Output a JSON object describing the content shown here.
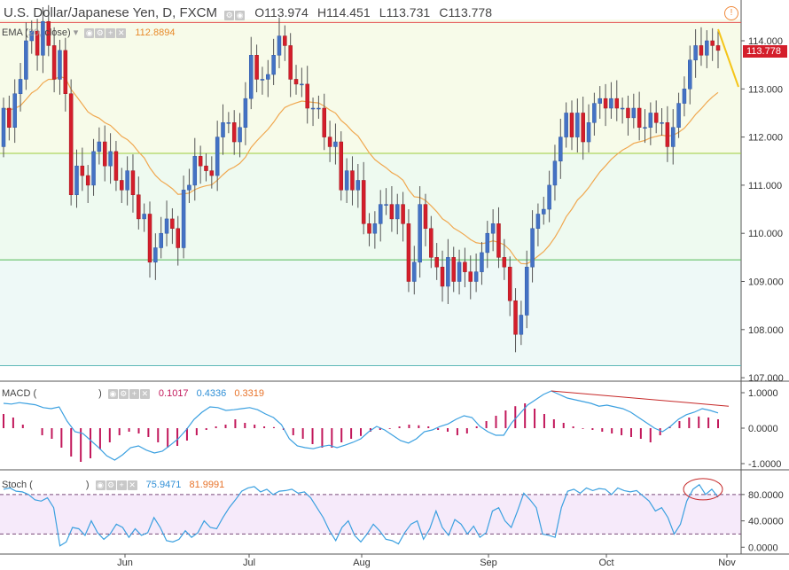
{
  "header": {
    "title": "U.S. Dollar/Japanese Yen, D, FXCM",
    "open": "O113.974",
    "high": "H114.451",
    "low": "L113.731",
    "close": "C113.778",
    "alert_icon": "alert-icon"
  },
  "indicators": {
    "ema": {
      "label": "EMA (",
      "params": "close)",
      "value": "112.8894"
    },
    "macd": {
      "label": "MACD (",
      "params": ")",
      "v1": "0.1017",
      "v2": "0.4336",
      "v3": "0.3319"
    },
    "stoch": {
      "label": "Stoch (",
      "params": ")",
      "v1": "75.9471",
      "v2": "81.9991"
    }
  },
  "last_price": "113.778",
  "colors": {
    "up": "#4472c4",
    "down": "#d41e2b",
    "ema": "#f0a850",
    "macd_line": "#3ba0e0",
    "macd_hist": "#c2185b",
    "stoch_k": "#3ba0e0",
    "accent_yellow": "#f5c518",
    "red_line": "#c62828"
  },
  "chart_data": [
    {
      "type": "candlestick",
      "title": "U.S. Dollar/Japanese Yen, D, FXCM",
      "xlabel": "",
      "ylabel": "",
      "x_ticks": [
        "Jun",
        "Jul",
        "Aug",
        "Sep",
        "Oct",
        "Nov"
      ],
      "y_ticks": [
        114.0,
        113.0,
        112.0,
        111.0,
        110.0,
        109.0,
        108.0,
        107.0
      ],
      "ylim": [
        107.0,
        114.4
      ],
      "horizontal_lines": [
        114.38,
        111.66,
        109.45,
        107.25
      ],
      "candles": [
        [
          111.8,
          112.6
        ],
        [
          112.6,
          112.2
        ],
        [
          112.2,
          112.9
        ],
        [
          112.9,
          113.2
        ],
        [
          113.2,
          114.0
        ],
        [
          114.0,
          114.2
        ],
        [
          114.2,
          113.7
        ],
        [
          113.7,
          114.4
        ],
        [
          114.4,
          113.9
        ],
        [
          113.9,
          113.2
        ],
        [
          113.2,
          113.8
        ],
        [
          113.8,
          112.9
        ],
        [
          112.9,
          110.8
        ],
        [
          110.8,
          111.4
        ],
        [
          111.4,
          111.2
        ],
        [
          111.2,
          111.0
        ],
        [
          111.0,
          111.7
        ],
        [
          111.7,
          111.9
        ],
        [
          111.9,
          111.4
        ],
        [
          111.4,
          111.7
        ],
        [
          111.7,
          111.1
        ],
        [
          111.1,
          110.9
        ],
        [
          110.9,
          111.3
        ],
        [
          111.3,
          110.8
        ],
        [
          110.8,
          110.3
        ],
        [
          110.3,
          110.4
        ],
        [
          110.4,
          109.4
        ],
        [
          109.4,
          109.7
        ],
        [
          109.7,
          110.0
        ],
        [
          110.0,
          110.3
        ],
        [
          110.3,
          110.1
        ],
        [
          110.1,
          109.7
        ],
        [
          109.7,
          110.9
        ],
        [
          110.9,
          111.0
        ],
        [
          111.0,
          111.6
        ],
        [
          111.6,
          111.4
        ],
        [
          111.4,
          111.3
        ],
        [
          111.3,
          111.2
        ],
        [
          111.2,
          112.0
        ],
        [
          112.0,
          112.3
        ],
        [
          112.3,
          112.3
        ],
        [
          112.3,
          111.9
        ],
        [
          111.9,
          112.2
        ],
        [
          112.2,
          112.8
        ],
        [
          112.8,
          113.7
        ],
        [
          113.7,
          113.2
        ],
        [
          113.2,
          113.2
        ],
        [
          113.2,
          113.3
        ],
        [
          113.3,
          113.7
        ],
        [
          113.7,
          114.1
        ],
        [
          114.1,
          113.9
        ],
        [
          113.9,
          113.2
        ],
        [
          113.2,
          113.1
        ],
        [
          113.1,
          113.1
        ],
        [
          113.1,
          112.6
        ],
        [
          112.6,
          112.6
        ],
        [
          112.6,
          112.6
        ],
        [
          112.6,
          112.0
        ],
        [
          112.0,
          111.8
        ],
        [
          111.8,
          111.9
        ],
        [
          111.9,
          110.9
        ],
        [
          110.9,
          111.3
        ],
        [
          111.3,
          110.9
        ],
        [
          110.9,
          111.1
        ],
        [
          111.1,
          110.2
        ],
        [
          110.2,
          110.0
        ],
        [
          110.0,
          110.2
        ],
        [
          110.2,
          110.6
        ],
        [
          110.6,
          110.6
        ],
        [
          110.6,
          110.3
        ],
        [
          110.3,
          110.6
        ],
        [
          110.6,
          110.2
        ],
        [
          110.2,
          109.0
        ],
        [
          109.0,
          109.4
        ],
        [
          109.4,
          110.6
        ],
        [
          110.6,
          110.1
        ],
        [
          110.1,
          109.5
        ],
        [
          109.5,
          109.3
        ],
        [
          109.3,
          108.9
        ],
        [
          108.9,
          109.5
        ],
        [
          109.5,
          109.0
        ],
        [
          109.0,
          109.4
        ],
        [
          109.4,
          109.2
        ],
        [
          109.2,
          109.0
        ],
        [
          109.0,
          109.2
        ],
        [
          109.2,
          109.6
        ],
        [
          109.6,
          110.0
        ],
        [
          110.0,
          110.2
        ],
        [
          110.2,
          109.5
        ],
        [
          109.5,
          109.3
        ],
        [
          109.3,
          108.6
        ],
        [
          108.6,
          107.9
        ],
        [
          107.9,
          108.3
        ],
        [
          108.3,
          109.3
        ],
        [
          109.3,
          110.1
        ],
        [
          110.1,
          110.4
        ],
        [
          110.4,
          110.5
        ],
        [
          110.5,
          111.0
        ],
        [
          111.0,
          111.5
        ],
        [
          111.5,
          112.0
        ],
        [
          112.0,
          112.5
        ],
        [
          112.5,
          112.0
        ],
        [
          112.0,
          112.5
        ],
        [
          112.5,
          111.9
        ],
        [
          111.9,
          112.3
        ],
        [
          112.3,
          112.7
        ],
        [
          112.7,
          112.8
        ],
        [
          112.8,
          112.6
        ],
        [
          112.6,
          112.8
        ],
        [
          112.8,
          112.6
        ],
        [
          112.6,
          112.6
        ],
        [
          112.6,
          112.4
        ],
        [
          112.4,
          112.6
        ],
        [
          112.6,
          112.2
        ],
        [
          112.2,
          112.2
        ],
        [
          112.2,
          112.5
        ],
        [
          112.5,
          112.3
        ],
        [
          112.3,
          112.3
        ],
        [
          112.3,
          111.8
        ],
        [
          111.8,
          112.2
        ],
        [
          112.2,
          112.7
        ],
        [
          112.7,
          113.0
        ],
        [
          113.0,
          113.6
        ],
        [
          113.6,
          113.9
        ],
        [
          113.9,
          113.7
        ],
        [
          113.7,
          114.0
        ],
        [
          114.0,
          113.9
        ],
        [
          113.9,
          113.8
        ]
      ],
      "ema_last": 112.8894,
      "last_price": 113.778
    },
    {
      "type": "line",
      "title": "MACD",
      "y_ticks": [
        1.0,
        0.0,
        -1.0
      ],
      "ylim": [
        -1.2,
        1.2
      ],
      "series": [
        {
          "name": "",
          "values": [
            0.7,
            0.68,
            0.72,
            0.69,
            0.66,
            0.58,
            0.55,
            0.6,
            0.2,
            -0.1,
            -0.15,
            -0.35,
            -0.55,
            -0.78,
            -0.9,
            -0.75,
            -0.55,
            -0.5,
            -0.62,
            -0.7,
            -0.65,
            -0.48,
            -0.3,
            -0.05,
            0.25,
            0.45,
            0.6,
            0.58,
            0.5,
            0.52,
            0.55,
            0.58,
            0.52,
            0.4,
            0.3,
            0.1,
            -0.3,
            -0.5,
            -0.55,
            -0.58,
            -0.52,
            -0.48,
            -0.55,
            -0.48,
            -0.4,
            -0.3,
            -0.1,
            0.05,
            -0.05,
            -0.2,
            -0.35,
            -0.42,
            -0.3,
            -0.1,
            -0.05,
            0.05,
            0.12,
            0.25,
            0.35,
            0.3,
            0.05,
            -0.1,
            -0.2,
            -0.2,
            0.15,
            0.4,
            0.65,
            0.8,
            0.95,
            1.05,
            0.95,
            0.85,
            0.8,
            0.75,
            0.7,
            0.62,
            0.65,
            0.6,
            0.55,
            0.45,
            0.3,
            0.15,
            0.0,
            -0.1,
            0.05,
            0.25,
            0.38,
            0.45,
            0.55,
            0.5,
            0.43
          ]
        }
      ],
      "histogram": [
        0.4,
        0.3,
        0.1,
        0.0,
        -0.2,
        -0.3,
        -0.55,
        -0.8,
        -0.95,
        -0.85,
        -0.6,
        -0.4,
        -0.2,
        -0.1,
        -0.15,
        -0.25,
        -0.4,
        -0.55,
        -0.5,
        -0.35,
        -0.2,
        -0.05,
        0.05,
        0.1,
        0.25,
        0.15,
        0.1,
        0.05,
        0.03,
        -0.05,
        -0.2,
        -0.3,
        -0.45,
        -0.55,
        -0.55,
        -0.4,
        -0.3,
        -0.22,
        -0.1,
        -0.05,
        -0.02,
        0.05,
        0.1,
        0.08,
        0.05,
        -0.05,
        -0.1,
        -0.2,
        -0.15,
        0.05,
        0.2,
        0.35,
        0.5,
        0.62,
        0.7,
        0.55,
        0.4,
        0.25,
        0.15,
        0.05,
        -0.02,
        -0.05,
        -0.1,
        -0.15,
        -0.2,
        -0.25,
        -0.3,
        -0.4,
        -0.2,
        0.05,
        0.2,
        0.3,
        0.33,
        0.3,
        0.25
      ],
      "trendline": [
        [
          1.05
        ],
        [
          0.62
        ]
      ]
    },
    {
      "type": "line",
      "title": "Stoch",
      "y_ticks": [
        80.0,
        40.0,
        0.0
      ],
      "ylim": [
        -5,
        100
      ],
      "bands": [
        80,
        20
      ],
      "series": [
        {
          "name": "",
          "values": [
            88,
            90,
            85,
            84,
            80,
            72,
            70,
            75,
            60,
            2,
            8,
            30,
            28,
            18,
            40,
            22,
            12,
            20,
            35,
            30,
            15,
            28,
            18,
            22,
            45,
            30,
            10,
            8,
            12,
            25,
            15,
            22,
            40,
            30,
            28,
            45,
            60,
            72,
            85,
            90,
            92,
            84,
            88,
            80,
            85,
            86,
            88,
            82,
            84,
            75,
            60,
            45,
            25,
            10,
            30,
            40,
            18,
            8,
            20,
            35,
            25,
            12,
            10,
            5,
            22,
            35,
            40,
            12,
            28,
            55,
            30,
            18,
            42,
            35,
            20,
            32,
            15,
            22,
            55,
            60,
            40,
            30,
            55,
            82,
            72,
            60,
            20,
            18,
            15,
            60,
            85,
            88,
            82,
            90,
            86,
            89,
            88,
            80,
            90,
            86,
            84,
            86,
            78,
            70,
            55,
            60,
            45,
            20,
            35,
            70,
            88,
            95,
            80,
            88,
            76
          ]
        }
      ],
      "annotation": "circle"
    }
  ]
}
